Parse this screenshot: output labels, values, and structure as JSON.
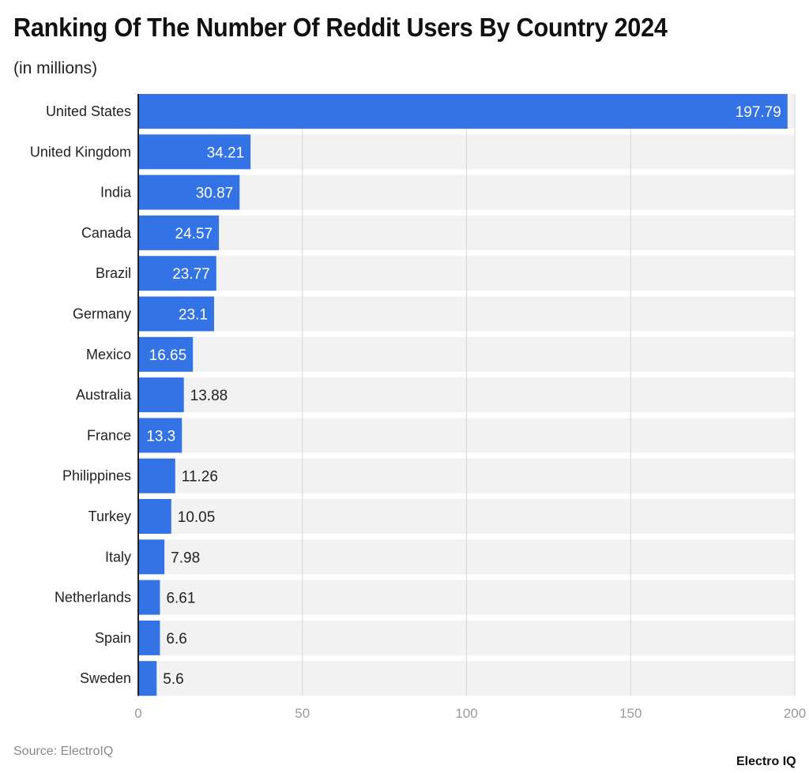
{
  "chart_data": {
    "type": "bar",
    "orientation": "horizontal",
    "title": "Ranking Of The Number Of Reddit Users By Country 2024",
    "subtitle": "(in millions)",
    "categories": [
      "United States",
      "United Kingdom",
      "India",
      "Canada",
      "Brazil",
      "Germany",
      "Mexico",
      "Australia",
      "France",
      "Philippines",
      "Turkey",
      "Italy",
      "Netherlands",
      "Spain",
      "Sweden"
    ],
    "values": [
      197.79,
      34.21,
      30.87,
      24.57,
      23.77,
      23.1,
      16.65,
      13.88,
      13.3,
      11.26,
      10.05,
      7.98,
      6.61,
      6.6,
      5.6
    ],
    "data_labels": [
      "197.79",
      "34.21",
      "30.87",
      "24.57",
      "23.77",
      "23.1",
      "16.65",
      "13.88",
      "13.3",
      "11.26",
      "10.05",
      "7.98",
      "6.61",
      "6.6",
      "5.6"
    ],
    "label_positions": [
      "inside",
      "inside",
      "inside",
      "inside",
      "inside",
      "inside",
      "inside",
      "outside",
      "inside",
      "outside",
      "outside",
      "outside",
      "outside",
      "outside",
      "outside"
    ],
    "xlim": [
      0,
      200
    ],
    "x_ticks": [
      "0",
      "50",
      "100",
      "150",
      "200"
    ],
    "x_tick_values": [
      0,
      50,
      100,
      150,
      200
    ],
    "grid": true,
    "legend": "none",
    "colors": {
      "bar": "#3373e6",
      "row_band": "#f2f2f2",
      "grid": "#d6d6d6",
      "tick": "#9a9a9a"
    }
  },
  "source": "Source: ElectroIQ",
  "logo": "Electro IQ"
}
